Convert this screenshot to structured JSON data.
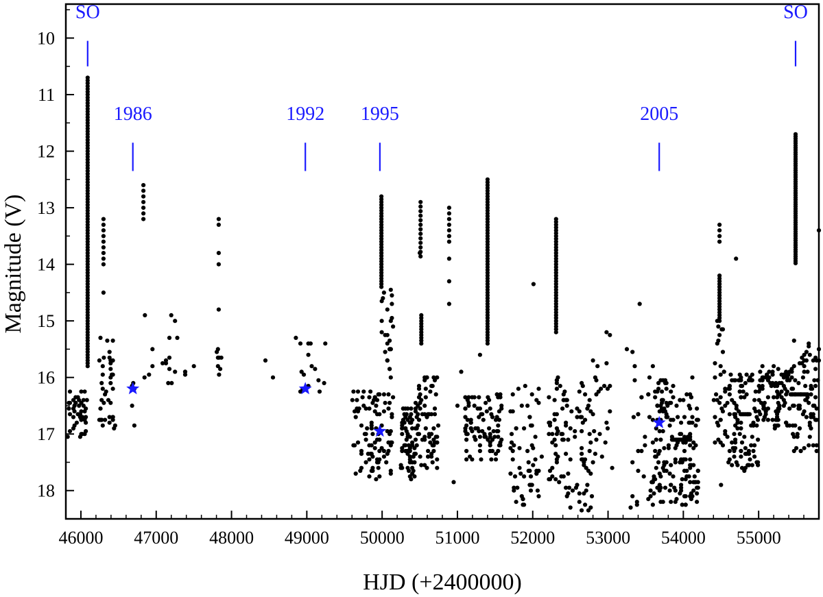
{
  "chart_data": {
    "type": "scatter",
    "xlabel": "HJD (+2400000)",
    "ylabel": "Magnitude (V)",
    "xlim": [
      45800,
      55800
    ],
    "ylim": [
      18.5,
      9.4
    ],
    "y_inverted": true,
    "grid": false,
    "x_ticks": [
      46000,
      47000,
      48000,
      49000,
      50000,
      51000,
      52000,
      53000,
      54000,
      55000
    ],
    "x_tick_labels": [
      "46000",
      "47000",
      "48000",
      "49000",
      "50000",
      "51000",
      "52000",
      "53000",
      "54000",
      "55000"
    ],
    "y_ticks": [
      10,
      11,
      12,
      13,
      14,
      15,
      16,
      17,
      18
    ],
    "y_tick_labels": [
      "10",
      "11",
      "12",
      "13",
      "14",
      "15",
      "16",
      "17",
      "18"
    ],
    "colors": {
      "points": "#000000",
      "annotations": "#1a1aff",
      "stars": "#1a1aff"
    },
    "annotations": [
      {
        "label": "SO",
        "x": 46090,
        "text_mag": 9.65,
        "line_from": 10.05,
        "line_to": 10.5
      },
      {
        "label": "1986",
        "x": 46690,
        "text_mag": 11.45,
        "line_from": 11.85,
        "line_to": 12.35
      },
      {
        "label": "1992",
        "x": 48980,
        "text_mag": 11.45,
        "line_from": 11.85,
        "line_to": 12.35
      },
      {
        "label": "1995",
        "x": 49970,
        "text_mag": 11.45,
        "line_from": 11.85,
        "line_to": 12.35
      },
      {
        "label": "2005",
        "x": 53680,
        "text_mag": 11.45,
        "line_from": 11.85,
        "line_to": 12.35
      },
      {
        "label": "SO",
        "x": 55490,
        "text_mag": 9.65,
        "line_from": 10.05,
        "line_to": 10.5
      }
    ],
    "stars": [
      {
        "x": 46690,
        "mag": 16.2
      },
      {
        "x": 48980,
        "mag": 16.2
      },
      {
        "x": 49970,
        "mag": 16.95
      },
      {
        "x": 53680,
        "mag": 16.8
      }
    ],
    "vertical_runs": [
      {
        "x": 46090,
        "from": 10.7,
        "to": 15.8,
        "step": 0.05
      },
      {
        "x": 46300,
        "from": 13.2,
        "to": 14.0,
        "step": 0.1
      },
      {
        "x": 46830,
        "from": 12.6,
        "to": 13.2,
        "step": 0.1
      },
      {
        "x": 47830,
        "from": 13.2,
        "to": 13.3,
        "step": 0.1
      },
      {
        "x": 49990,
        "from": 12.8,
        "to": 14.4,
        "step": 0.05
      },
      {
        "x": 50510,
        "from": 12.9,
        "to": 13.9,
        "step": 0.08
      },
      {
        "x": 50520,
        "from": 14.9,
        "to": 15.4,
        "step": 0.05
      },
      {
        "x": 50890,
        "from": 13.0,
        "to": 13.6,
        "step": 0.1
      },
      {
        "x": 51400,
        "from": 12.5,
        "to": 15.4,
        "step": 0.05
      },
      {
        "x": 52310,
        "from": 13.2,
        "to": 15.2,
        "step": 0.05
      },
      {
        "x": 54480,
        "from": 13.3,
        "to": 13.6,
        "step": 0.1
      },
      {
        "x": 54480,
        "from": 14.2,
        "to": 15.0,
        "step": 0.05
      },
      {
        "x": 55490,
        "from": 11.7,
        "to": 14.0,
        "step": 0.04
      }
    ],
    "clusters": [
      {
        "x0": 45820,
        "x1": 46080,
        "mag_min": 16.2,
        "mag_max": 17.1,
        "n": 45
      },
      {
        "x0": 46250,
        "x1": 46450,
        "mag_min": 15.3,
        "mag_max": 16.9,
        "n": 40
      },
      {
        "x0": 46650,
        "x1": 46720,
        "mag_min": 16.0,
        "mag_max": 16.9,
        "n": 6
      },
      {
        "x0": 46800,
        "x1": 47300,
        "mag_min": 15.3,
        "mag_max": 16.2,
        "n": 14
      },
      {
        "x0": 47380,
        "x1": 47420,
        "mag_min": 15.9,
        "mag_max": 16.1,
        "n": 3
      },
      {
        "x0": 47800,
        "x1": 47870,
        "mag_min": 15.4,
        "mag_max": 16.0,
        "n": 8
      },
      {
        "x0": 48850,
        "x1": 49250,
        "mag_min": 15.3,
        "mag_max": 16.3,
        "n": 16
      },
      {
        "x0": 49600,
        "x1": 49980,
        "mag_min": 16.2,
        "mag_max": 17.8,
        "n": 70
      },
      {
        "x0": 49990,
        "x1": 50150,
        "mag_min": 14.4,
        "mag_max": 17.8,
        "n": 50
      },
      {
        "x0": 50250,
        "x1": 50450,
        "mag_min": 16.5,
        "mag_max": 17.8,
        "n": 70
      },
      {
        "x0": 50450,
        "x1": 50750,
        "mag_min": 16.0,
        "mag_max": 17.6,
        "n": 70
      },
      {
        "x0": 51100,
        "x1": 51600,
        "mag_min": 16.3,
        "mag_max": 17.5,
        "n": 90
      },
      {
        "x0": 51700,
        "x1": 52100,
        "mag_min": 16.1,
        "mag_max": 18.3,
        "n": 60
      },
      {
        "x0": 52200,
        "x1": 52450,
        "mag_min": 16.0,
        "mag_max": 18.0,
        "n": 50
      },
      {
        "x0": 52450,
        "x1": 52800,
        "mag_min": 16.1,
        "mag_max": 18.4,
        "n": 55
      },
      {
        "x0": 52800,
        "x1": 53050,
        "mag_min": 15.2,
        "mag_max": 17.6,
        "n": 25
      },
      {
        "x0": 53300,
        "x1": 53600,
        "mag_min": 15.5,
        "mag_max": 18.3,
        "n": 30
      },
      {
        "x0": 53600,
        "x1": 54200,
        "mag_min": 16.0,
        "mag_max": 18.3,
        "n": 170
      },
      {
        "x0": 54400,
        "x1": 54550,
        "mag_min": 15.0,
        "mag_max": 17.3,
        "n": 30
      },
      {
        "x0": 54550,
        "x1": 55000,
        "mag_min": 15.9,
        "mag_max": 17.7,
        "n": 110
      },
      {
        "x0": 55000,
        "x1": 55450,
        "mag_min": 15.8,
        "mag_max": 16.9,
        "n": 100
      },
      {
        "x0": 55450,
        "x1": 55800,
        "mag_min": 15.3,
        "mag_max": 17.3,
        "n": 80
      }
    ],
    "points": [
      [
        46300,
        14.5
      ],
      [
        46850,
        14.9
      ],
      [
        47200,
        14.9
      ],
      [
        47250,
        15.0
      ],
      [
        47500,
        15.8
      ],
      [
        47830,
        13.8
      ],
      [
        47830,
        14.0
      ],
      [
        47830,
        14.8
      ],
      [
        48450,
        15.7
      ],
      [
        48550,
        16.0
      ],
      [
        50100,
        15.5
      ],
      [
        50130,
        14.7
      ],
      [
        50500,
        13.8
      ],
      [
        50890,
        13.9
      ],
      [
        50890,
        14.3
      ],
      [
        50890,
        14.7
      ],
      [
        51300,
        15.6
      ],
      [
        52010,
        14.35
      ],
      [
        53420,
        14.7
      ],
      [
        54700,
        13.9
      ],
      [
        55800,
        13.4
      ],
      [
        51000,
        16.5
      ],
      [
        50950,
        17.85
      ],
      [
        52120,
        17.4
      ],
      [
        53250,
        15.5
      ],
      [
        53300,
        18.3
      ],
      [
        54500,
        17.9
      ],
      [
        55200,
        15.8
      ],
      [
        51050,
        15.9
      ]
    ],
    "segment_runs": [
      {
        "x0": 53850,
        "x1": 54100,
        "mag": 17.1,
        "step": 15
      },
      {
        "x0": 55450,
        "x1": 55650,
        "mag": 16.3,
        "step": 20
      },
      {
        "x0": 54760,
        "x1": 54880,
        "mag": 16.65,
        "step": 15
      }
    ]
  }
}
